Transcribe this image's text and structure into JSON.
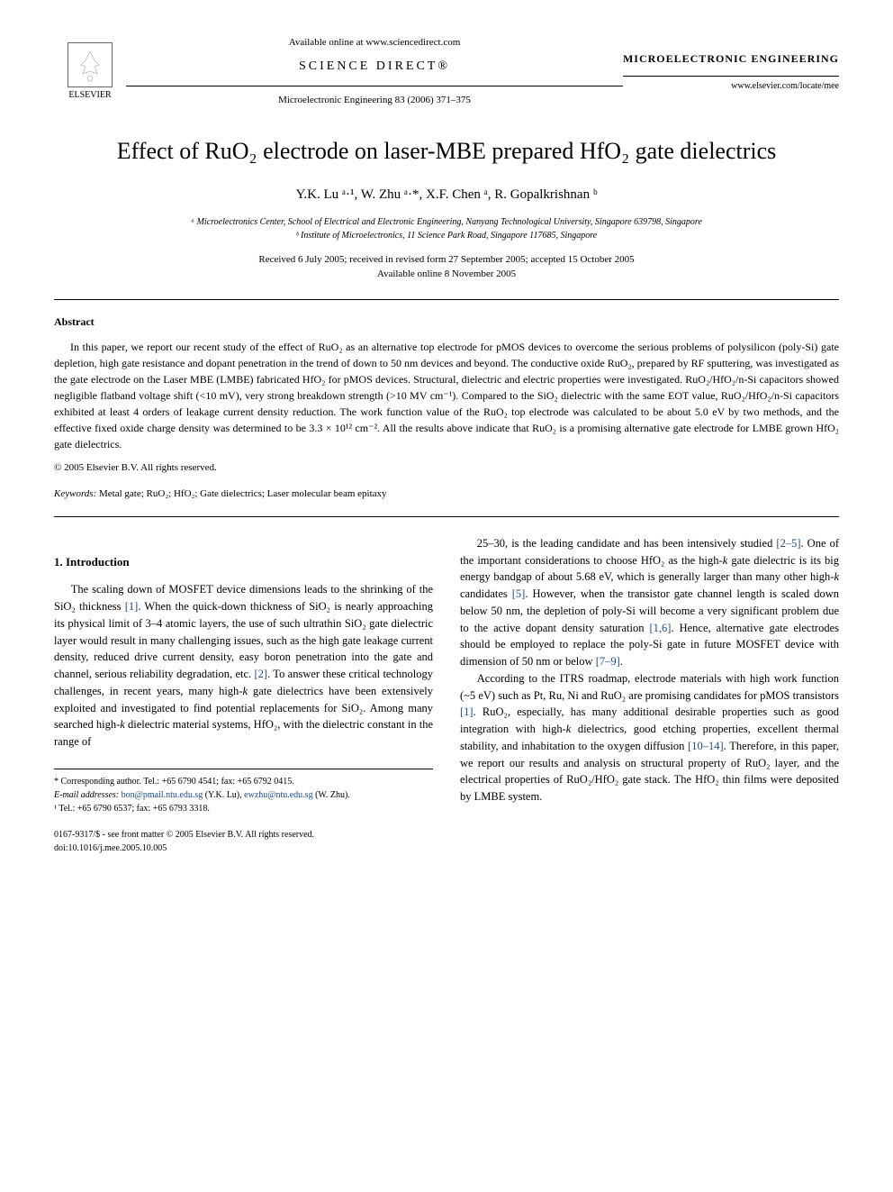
{
  "header": {
    "available_online": "Available online at www.sciencedirect.com",
    "science_direct": "SCIENCE DIRECT®",
    "citation": "Microelectronic Engineering 83 (2006) 371–375",
    "elsevier_label": "ELSEVIER",
    "journal_title": "MICROELECTRONIC ENGINEERING",
    "journal_url": "www.elsevier.com/locate/mee"
  },
  "paper": {
    "title": "Effect of RuO₂ electrode on laser-MBE prepared HfO₂ gate dielectrics",
    "authors": "Y.K. Lu ᵃ·¹, W. Zhu ᵃ·*, X.F. Chen ᵃ, R. Gopalkrishnan ᵇ",
    "affiliation_a": "ᵃ Microelectronics Center, School of Electrical and Electronic Engineering, Nanyang Technological University, Singapore 639798, Singapore",
    "affiliation_b": "ᵇ Institute of Microelectronics, 11 Science Park Road, Singapore 117685, Singapore",
    "dates_line1": "Received 6 July 2005; received in revised form 27 September 2005; accepted 15 October 2005",
    "dates_line2": "Available online 8 November 2005"
  },
  "abstract": {
    "heading": "Abstract",
    "text": "In this paper, we report our recent study of the effect of RuO₂ as an alternative top electrode for pMOS devices to overcome the serious problems of polysilicon (poly-Si) gate depletion, high gate resistance and dopant penetration in the trend of down to 50 nm devices and beyond. The conductive oxide RuO₂, prepared by RF sputtering, was investigated as the gate electrode on the Laser MBE (LMBE) fabricated HfO₂ for pMOS devices. Structural, dielectric and electric properties were investigated. RuO₂/HfO₂/n-Si capacitors showed negligible flatband voltage shift (<10 mV), very strong breakdown strength (>10 MV cm⁻¹). Compared to the SiO₂ dielectric with the same EOT value, RuO₂/HfO₂/n-Si capacitors exhibited at least 4 orders of leakage current density reduction. The work function value of the RuO₂ top electrode was calculated to be about 5.0 eV by two methods, and the effective fixed oxide charge density was determined to be 3.3 × 10¹² cm⁻². All the results above indicate that RuO₂ is a promising alternative gate electrode for LMBE grown HfO₂ gate dielectrics.",
    "copyright": "© 2005 Elsevier B.V. All rights reserved.",
    "keywords_label": "Keywords:",
    "keywords": " Metal gate; RuO₂; HfO₂; Gate dielectrics; Laser molecular beam epitaxy"
  },
  "sections": {
    "intro_heading": "1. Introduction",
    "col1_p1": "The scaling down of MOSFET device dimensions leads to the shrinking of the SiO₂ thickness [1]. When the quick-down thickness of SiO₂ is nearly approaching its physical limit of 3–4 atomic layers, the use of such ultrathin SiO₂ gate dielectric layer would result in many challenging issues, such as the high gate leakage current density, reduced drive current density, easy boron penetration into the gate and channel, serious reliability degradation, etc. [2]. To answer these critical technology challenges, in recent years, many high-k gate dielectrics have been extensively exploited and investigated to find potential replacements for SiO₂. Among many searched high-k dielectric material systems, HfO₂, with the dielectric constant in the range of",
    "col2_p1": "25–30, is the leading candidate and has been intensively studied [2–5]. One of the important considerations to choose HfO₂ as the high-k gate dielectric is its big energy bandgap of about 5.68 eV, which is generally larger than many other high-k candidates [5]. However, when the transistor gate channel length is scaled down below 50 nm, the depletion of poly-Si will become a very significant problem due to the active dopant density saturation [1,6]. Hence, alternative gate electrodes should be employed to replace the poly-Si gate in future MOSFET device with dimension of 50 nm or below [7–9].",
    "col2_p2": "According to the ITRS roadmap, electrode materials with high work function (~5 eV) such as Pt, Ru, Ni and RuO₂ are promising candidates for pMOS transistors [1]. RuO₂, especially, has many additional desirable properties such as good integration with high-k dielectrics, good etching properties, excellent thermal stability, and inhabitation to the oxygen diffusion [10–14]. Therefore, in this paper, we report our results and analysis on structural property of RuO₂ layer, and the electrical properties of RuO₂/HfO₂ gate stack. The HfO₂ thin films were deposited by LMBE system."
  },
  "footnotes": {
    "corresponding": "* Corresponding author. Tel.: +65 6790 4541; fax: +65 6792 0415.",
    "emails_label": "E-mail addresses:",
    "email1": "bon@pmail.ntu.edu.sg",
    "email1_name": " (Y.K. Lu), ",
    "email2": "ewzhu@ntu.edu.sg",
    "email2_name": " (W. Zhu).",
    "fn1": "¹ Tel.: +65 6790 6537; fax: +65 6793 3318."
  },
  "footer": {
    "issn": "0167-9317/$ - see front matter © 2005 Elsevier B.V. All rights reserved.",
    "doi": "doi:10.1016/j.mee.2005.10.005"
  },
  "colors": {
    "text": "#000000",
    "link": "#1a4d8f",
    "background": "#ffffff"
  }
}
